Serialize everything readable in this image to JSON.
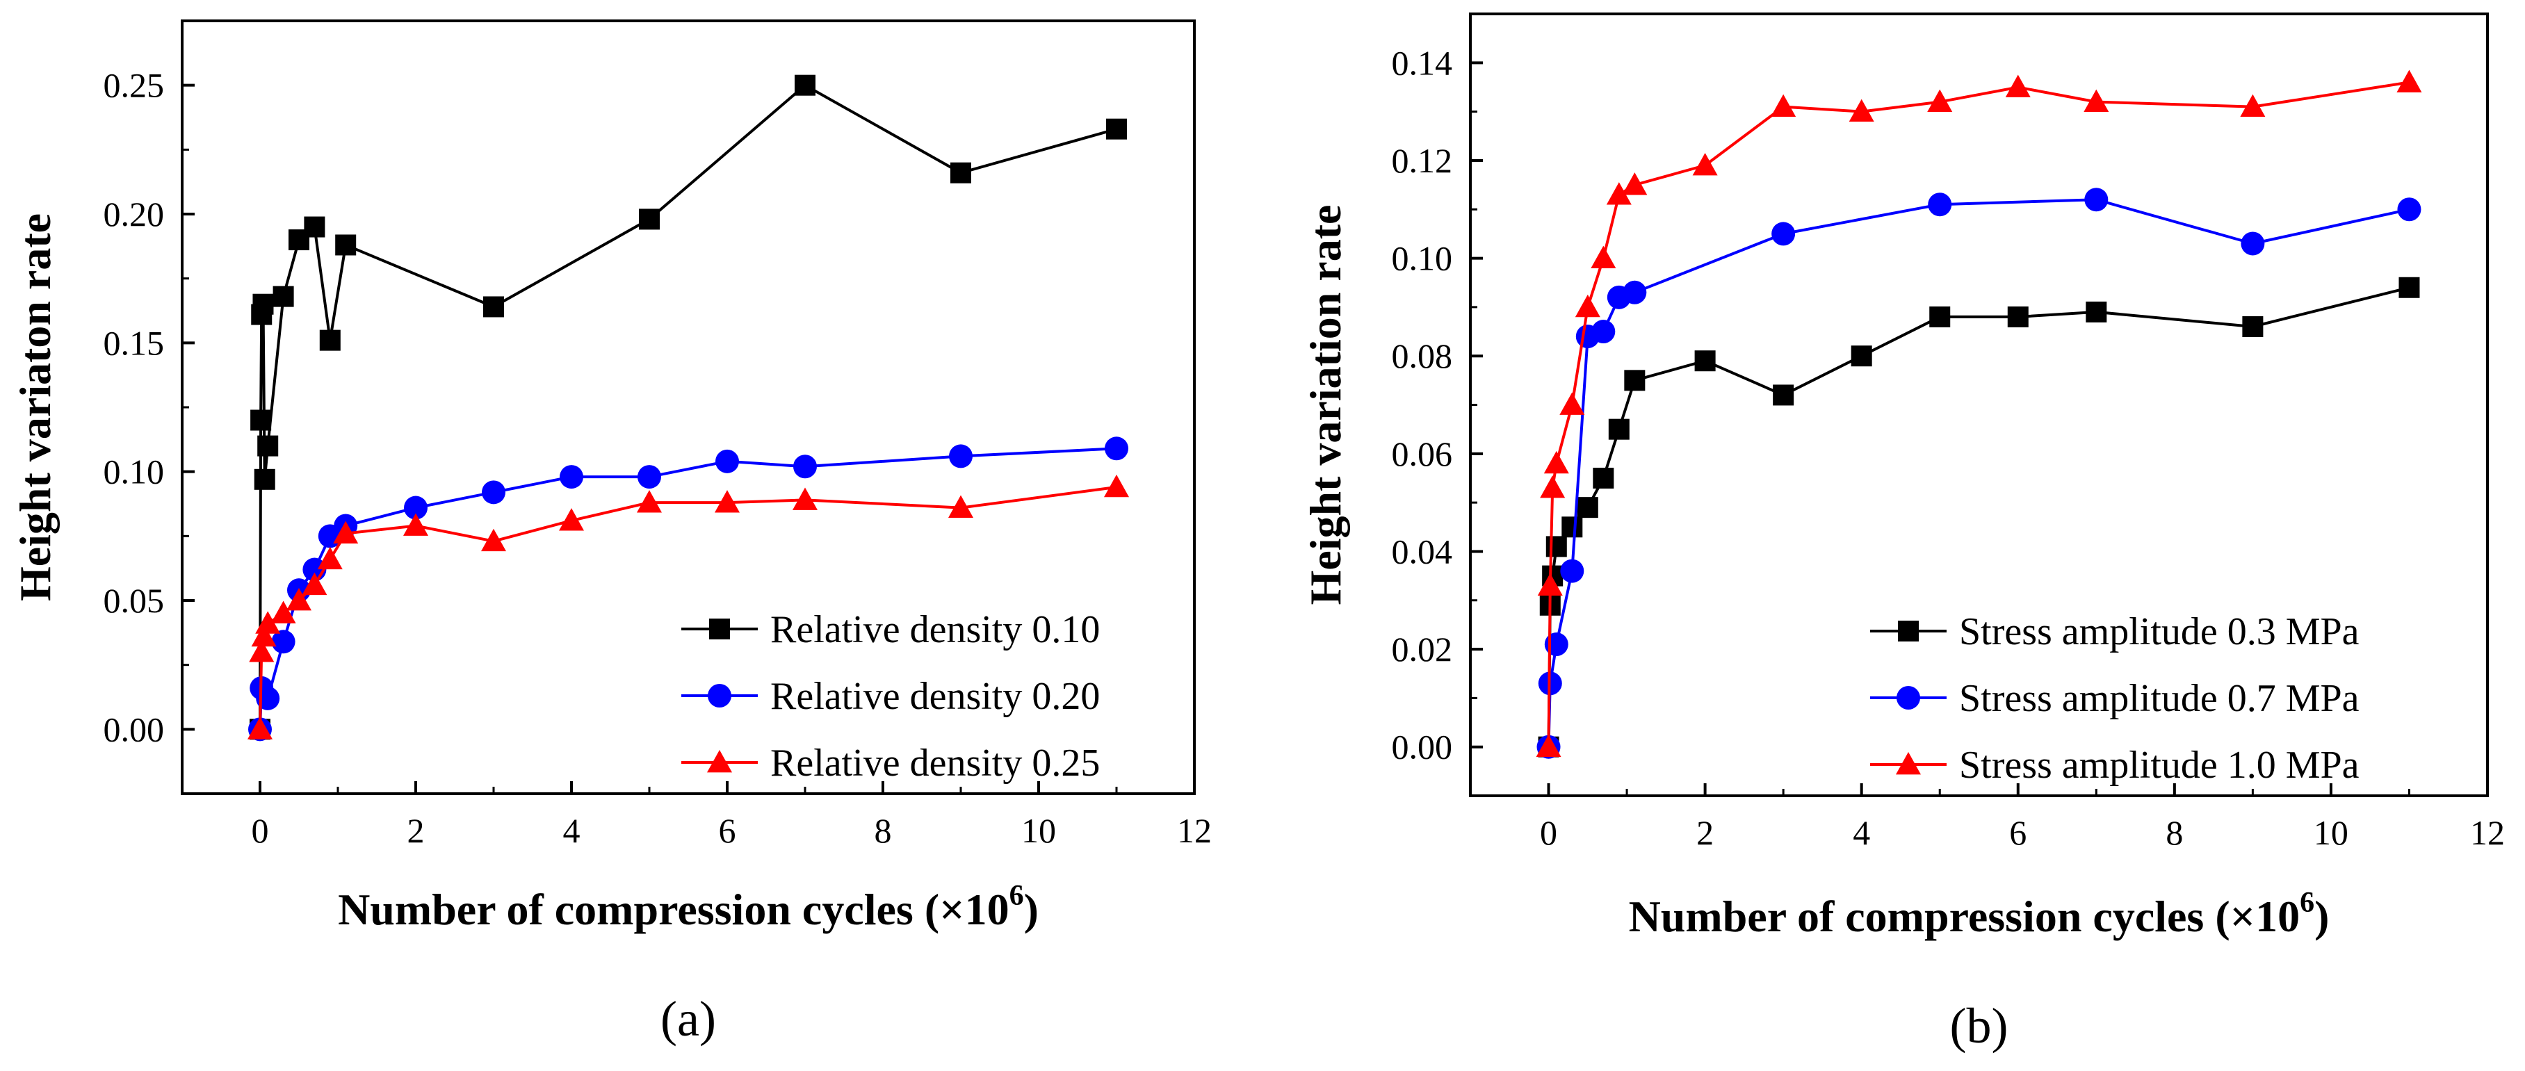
{
  "chart_data": [
    {
      "type": "line",
      "panel_label": "(a)",
      "xlabel": "Number of compression cycles (×10",
      "xlabel_sup": "6",
      "xlabel_close": ")",
      "ylabel": "Height variaton rate",
      "xlim": [
        -1,
        12
      ],
      "ylim": [
        -0.025,
        0.275
      ],
      "xticks": [
        0,
        2,
        4,
        6,
        8,
        10,
        12
      ],
      "xtick_labels": [
        "0",
        "2",
        "4",
        "6",
        "8",
        "10",
        "12"
      ],
      "yticks": [
        0,
        0.05,
        0.1,
        0.15,
        0.2,
        0.25
      ],
      "ytick_labels": [
        "0.00",
        "0.05",
        "0.10",
        "0.15",
        "0.20",
        "0.25"
      ],
      "legend_position": "bottom-right",
      "series": [
        {
          "name": "Relative density 0.10",
          "color": "#000000",
          "marker": "square",
          "x": [
            0,
            0.01,
            0.02,
            0.04,
            0.06,
            0.1,
            0.3,
            0.5,
            0.7,
            0.9,
            1.1,
            3,
            5,
            7,
            9,
            11
          ],
          "y": [
            0,
            0.12,
            0.161,
            0.165,
            0.097,
            0.11,
            0.168,
            0.19,
            0.195,
            0.151,
            0.188,
            0.164,
            0.198,
            0.25,
            0.216,
            0.233
          ]
        },
        {
          "name": "Relative density 0.20",
          "color": "#0000ff",
          "marker": "circle",
          "x": [
            0,
            0.02,
            0.1,
            0.3,
            0.5,
            0.7,
            0.9,
            1.1,
            2,
            3,
            4,
            5,
            6,
            7,
            9,
            11
          ],
          "y": [
            0,
            0.016,
            0.012,
            0.034,
            0.054,
            0.062,
            0.075,
            0.079,
            0.086,
            0.092,
            0.098,
            0.098,
            0.104,
            0.102,
            0.106,
            0.109
          ]
        },
        {
          "name": "Relative density 0.25",
          "color": "#ff0000",
          "marker": "triangle",
          "x": [
            0,
            0.02,
            0.05,
            0.1,
            0.3,
            0.5,
            0.7,
            0.9,
            1.1,
            2,
            3,
            4,
            5,
            6,
            7,
            9,
            11
          ],
          "y": [
            0,
            0.03,
            0.036,
            0.041,
            0.045,
            0.05,
            0.056,
            0.066,
            0.076,
            0.079,
            0.073,
            0.081,
            0.088,
            0.088,
            0.089,
            0.086,
            0.094
          ]
        }
      ]
    },
    {
      "type": "line",
      "panel_label": "(b)",
      "xlabel": "Number of compression cycles (×10",
      "xlabel_sup": "6",
      "xlabel_close": ")",
      "ylabel": "Height variation rate",
      "xlim": [
        -1,
        12
      ],
      "ylim": [
        -0.01,
        0.15
      ],
      "xticks": [
        0,
        2,
        4,
        6,
        8,
        10,
        12
      ],
      "xtick_labels": [
        "0",
        "2",
        "4",
        "6",
        "8",
        "10",
        "12"
      ],
      "yticks": [
        0,
        0.02,
        0.04,
        0.06,
        0.08,
        0.1,
        0.12,
        0.14
      ],
      "ytick_labels": [
        "0.00",
        "0.02",
        "0.04",
        "0.06",
        "0.08",
        "0.10",
        "0.12",
        "0.14"
      ],
      "legend_position": "bottom-right",
      "series": [
        {
          "name": "Stress amplitude 0.3 MPa",
          "color": "#000000",
          "marker": "square",
          "x": [
            0,
            0.02,
            0.05,
            0.1,
            0.3,
            0.5,
            0.7,
            0.9,
            1.1,
            2,
            3,
            4,
            5,
            6,
            7,
            9,
            11
          ],
          "y": [
            0,
            0.029,
            0.035,
            0.041,
            0.045,
            0.049,
            0.055,
            0.065,
            0.075,
            0.079,
            0.072,
            0.08,
            0.088,
            0.088,
            0.089,
            0.086,
            0.094
          ]
        },
        {
          "name": "Stress amplitude 0.7 MPa",
          "color": "#0000ff",
          "marker": "circle",
          "x": [
            0,
            0.02,
            0.1,
            0.3,
            0.5,
            0.7,
            0.9,
            1.1,
            3,
            5,
            7,
            9,
            11
          ],
          "y": [
            0,
            0.013,
            0.021,
            0.036,
            0.084,
            0.085,
            0.092,
            0.093,
            0.105,
            0.111,
            0.112,
            0.103,
            0.11
          ]
        },
        {
          "name": "Stress amplitude 1.0 MPa",
          "color": "#ff0000",
          "marker": "triangle",
          "x": [
            0,
            0.02,
            0.05,
            0.1,
            0.3,
            0.5,
            0.7,
            0.9,
            1.1,
            2,
            3,
            4,
            5,
            6,
            7,
            9,
            11
          ],
          "y": [
            0,
            0.033,
            0.053,
            0.058,
            0.07,
            0.09,
            0.1,
            0.113,
            0.115,
            0.119,
            0.131,
            0.13,
            0.132,
            0.135,
            0.132,
            0.131,
            0.136
          ]
        }
      ]
    }
  ]
}
